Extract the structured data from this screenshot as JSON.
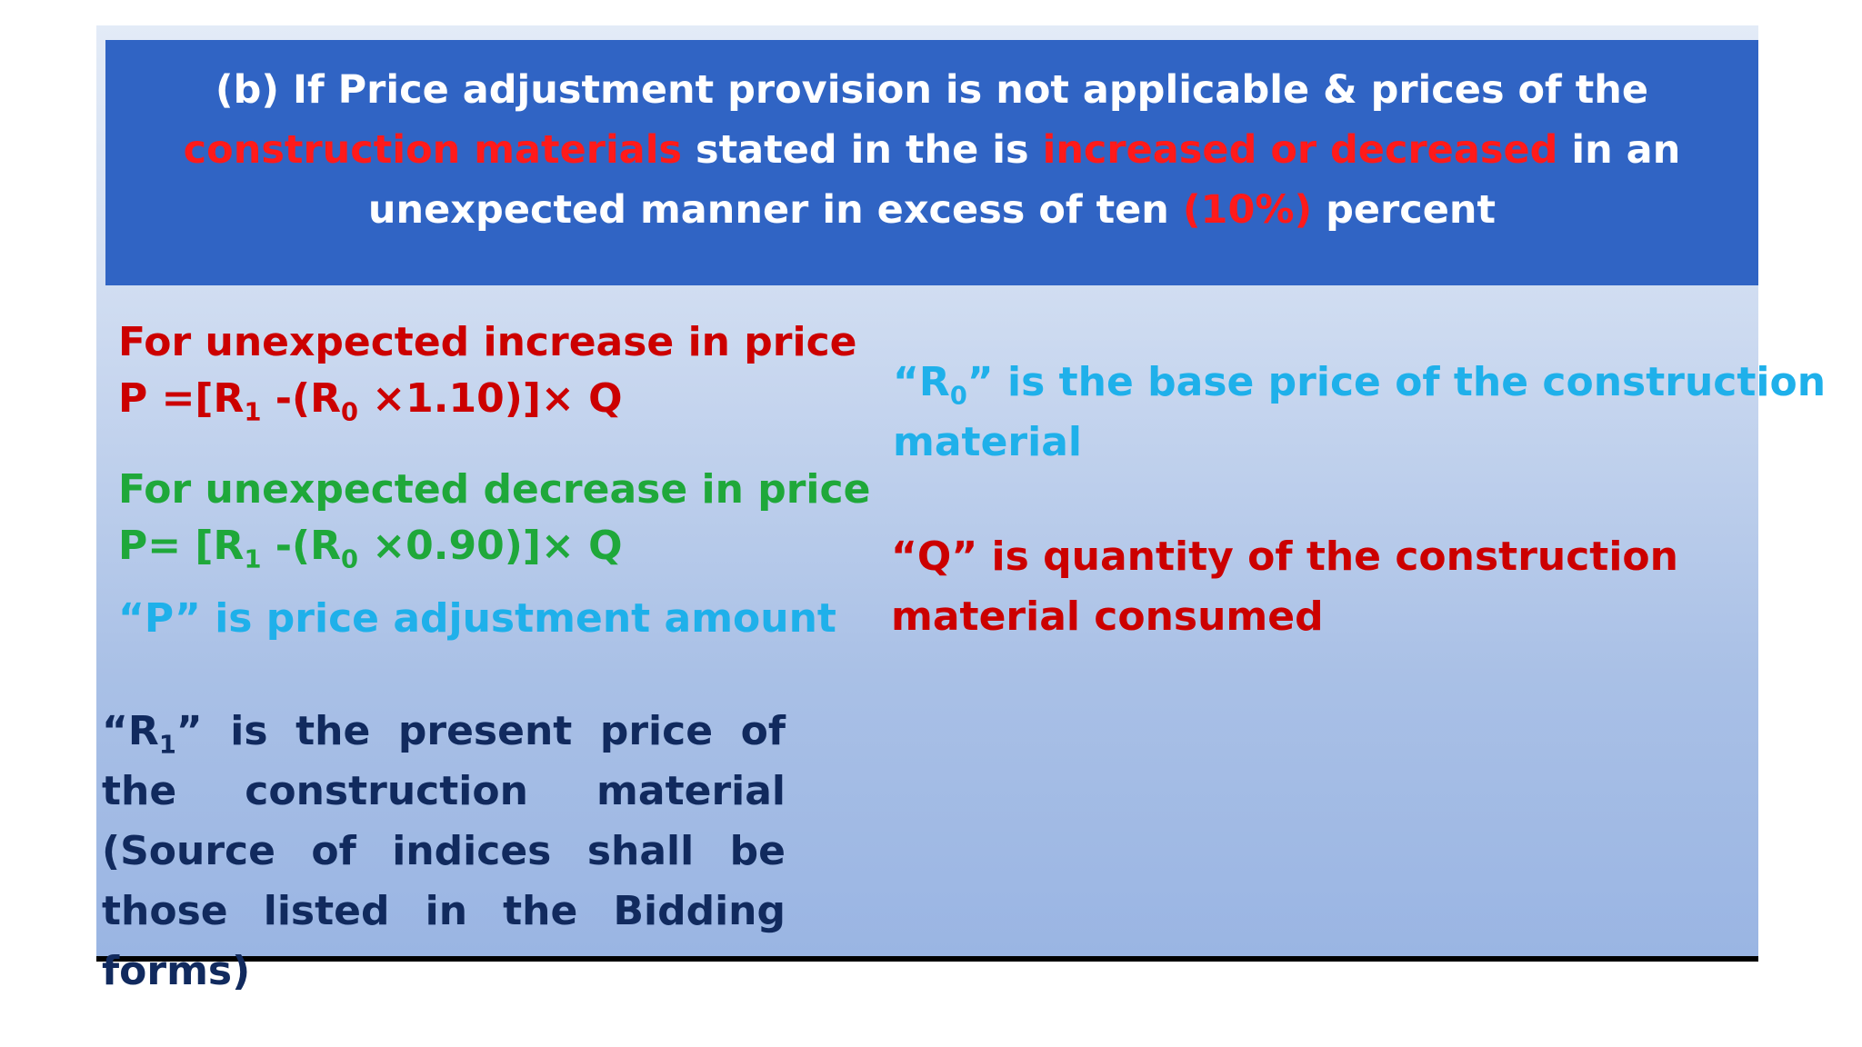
{
  "banner": {
    "part1": "(b) If Price adjustment provision is not applicable & prices of the ",
    "red1": "construction materials",
    "part2": " stated in the  is ",
    "red2": "increased or decreased",
    "part3": " in an unexpected manner  in excess of ten ",
    "red3": "(10%)",
    "part4": " percent"
  },
  "increase": {
    "heading": "For unexpected increase in price",
    "f_a": "P =[R",
    "f_sub1": "1",
    "f_b": " -(R",
    "f_sub0": "0",
    "f_c": " ×1.10)]× Q"
  },
  "decrease": {
    "heading": "For unexpected decrease in price",
    "f_a": "P= [R",
    "f_sub1": "1",
    "f_b": " -(R",
    "f_sub0": "0",
    "f_c": " ×0.90)]× Q"
  },
  "p_def": "“P” is price adjustment amount",
  "r1_def": {
    "a": "“R",
    "sub": "1",
    "b": "” is the present price of the construction material (Source of indices shall be those listed in the Bidding forms)"
  },
  "r0_def": {
    "a": "“R",
    "sub": "0",
    "b": "” is the base price of the construction",
    "line2": "material"
  },
  "q_def": {
    "line1": "“Q” is quantity of the construction",
    "line2": "material consumed"
  },
  "colors": {
    "banner_bg": "#3064c4",
    "highlight_red": "#ff1a1a",
    "dark_red": "#cc0000",
    "green": "#1fa83a",
    "cyan": "#1fb0ea",
    "navy": "#112a5e"
  }
}
